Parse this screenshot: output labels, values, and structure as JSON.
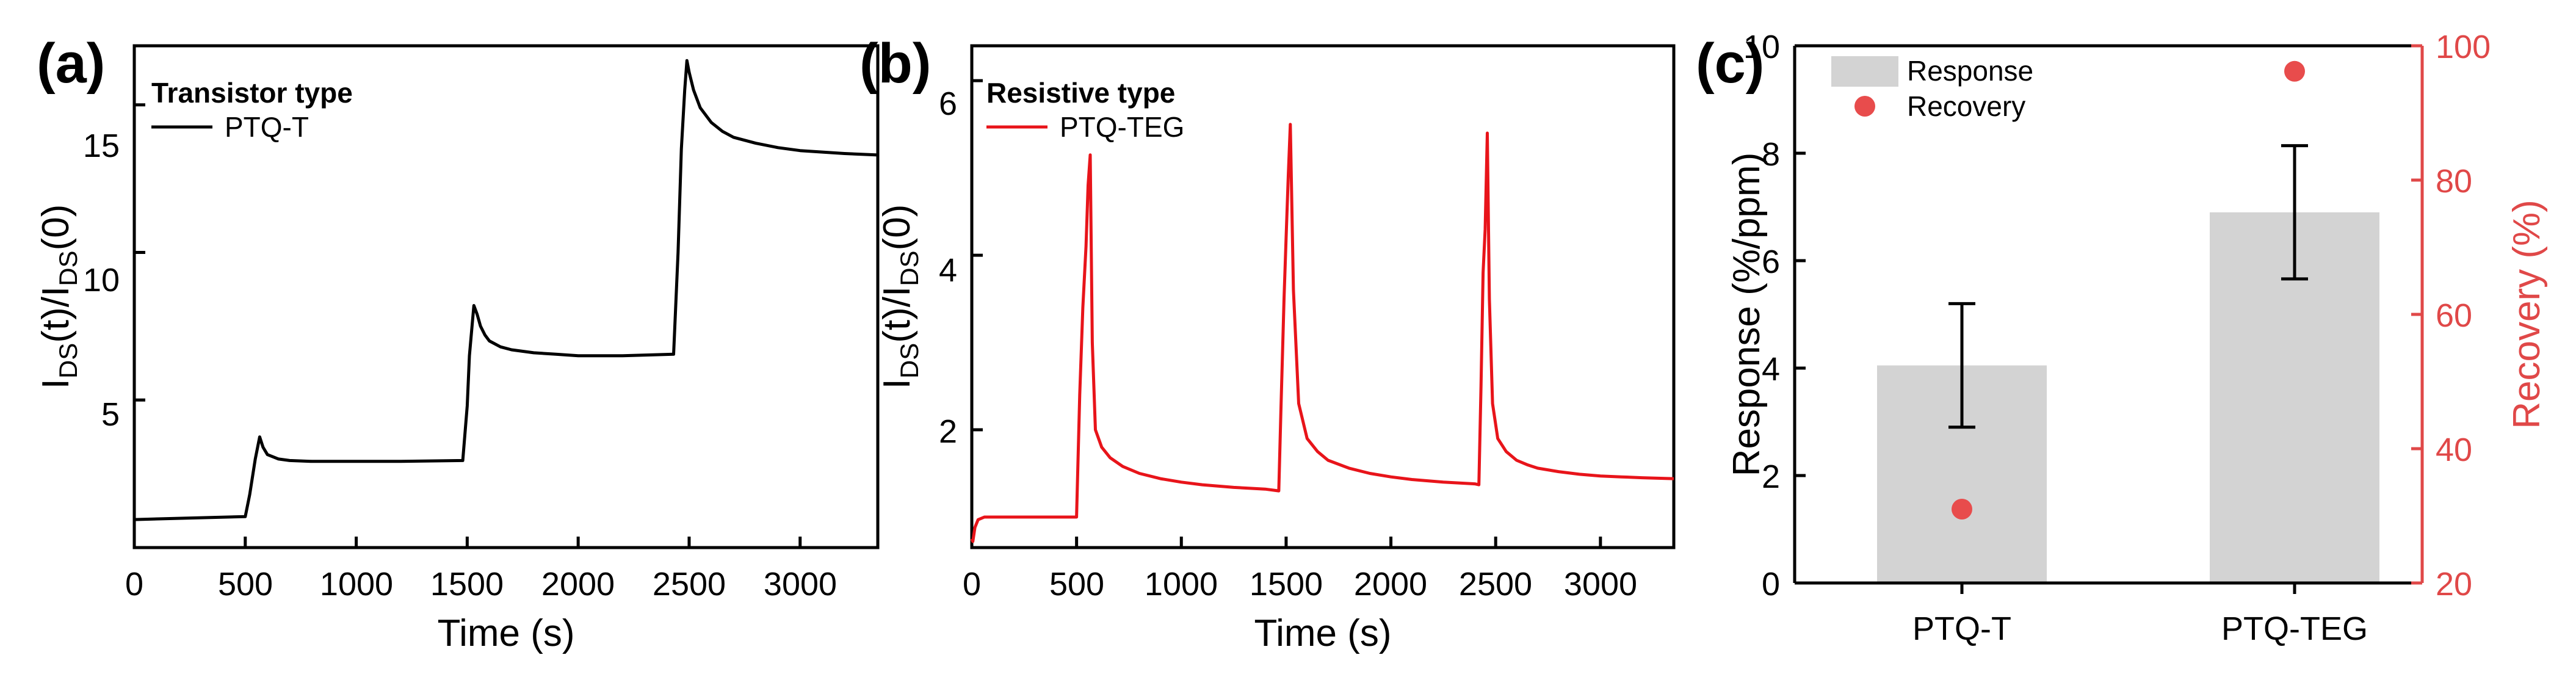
{
  "colors": {
    "black": "#000000",
    "red": "#e8141a",
    "bar_gray": "#d3d3d3",
    "dot_red": "#e84c4c",
    "right_axis_red": "#e04848"
  },
  "chart_data": [
    {
      "panel": "(a)",
      "type": "line",
      "xlabel": "Time (s)",
      "ylabel": {
        "base": "I",
        "sub1": "DS",
        "mid": "(t)/I",
        "sub2": "DS",
        "end": "(0)"
      },
      "xlim": [
        0,
        3350
      ],
      "ylim": [
        0,
        17
      ],
      "xticks": [
        "0",
        "500",
        "1000",
        "1500",
        "2000",
        "2500",
        "3000"
      ],
      "yticks": [
        "5",
        "10",
        "15"
      ],
      "legend_title": "Transistor type",
      "legend_position": "top-left",
      "series": [
        {
          "name": "PTQ-T",
          "color": "#000000",
          "x": [
            0,
            500,
            520,
            545,
            565,
            580,
            600,
            650,
            700,
            800,
            900,
            1000,
            1200,
            1480,
            1500,
            1510,
            1530,
            1545,
            1560,
            1580,
            1600,
            1650,
            1700,
            1800,
            1900,
            2000,
            2200,
            2430,
            2450,
            2465,
            2480,
            2490,
            2500,
            2520,
            2550,
            2600,
            2650,
            2700,
            2800,
            2900,
            3000,
            3100,
            3200,
            3350
          ],
          "y": [
            0.95,
            1.05,
            1.8,
            3.0,
            3.75,
            3.4,
            3.15,
            3.0,
            2.95,
            2.92,
            2.92,
            2.92,
            2.92,
            2.95,
            4.8,
            6.5,
            8.2,
            7.9,
            7.5,
            7.2,
            7.0,
            6.8,
            6.7,
            6.6,
            6.55,
            6.5,
            6.5,
            6.55,
            10.0,
            13.5,
            15.5,
            16.5,
            16.1,
            15.5,
            14.9,
            14.4,
            14.1,
            13.9,
            13.7,
            13.55,
            13.45,
            13.4,
            13.35,
            13.3
          ]
        }
      ]
    },
    {
      "panel": "(b)",
      "type": "line",
      "xlabel": "Time (s)",
      "ylabel": {
        "base": "I",
        "sub1": "DS",
        "mid": "(t)/I",
        "sub2": "DS",
        "end": "(0)"
      },
      "xlim": [
        0,
        3350
      ],
      "ylim": [
        0.65,
        6.4
      ],
      "xticks": [
        "0",
        "500",
        "1000",
        "1500",
        "2000",
        "2500",
        "3000"
      ],
      "yticks": [
        "2",
        "4",
        "6"
      ],
      "legend_title": "Resistive type",
      "legend_position": "top-left",
      "series": [
        {
          "name": "PTQ-TEG",
          "color": "#e8141a",
          "x": [
            0,
            5,
            15,
            30,
            60,
            150,
            300,
            500,
            515,
            530,
            545,
            555,
            565,
            575,
            590,
            620,
            660,
            720,
            800,
            900,
            1000,
            1100,
            1250,
            1400,
            1465,
            1475,
            1490,
            1500,
            1510,
            1520,
            1535,
            1560,
            1600,
            1650,
            1700,
            1800,
            1900,
            2000,
            2100,
            2250,
            2400,
            2420,
            2430,
            2440,
            2450,
            2460,
            2470,
            2485,
            2510,
            2550,
            2600,
            2650,
            2700,
            2800,
            2900,
            3000,
            3100,
            3200,
            3350
          ],
          "y": [
            0.75,
            0.72,
            0.88,
            0.97,
            1.0,
            1.0,
            1.0,
            1.0,
            2.4,
            3.4,
            4.1,
            4.8,
            5.15,
            3.0,
            2.0,
            1.8,
            1.68,
            1.58,
            1.5,
            1.44,
            1.4,
            1.37,
            1.34,
            1.32,
            1.3,
            2.2,
            3.5,
            4.2,
            4.9,
            5.5,
            3.6,
            2.3,
            1.9,
            1.75,
            1.65,
            1.56,
            1.5,
            1.46,
            1.43,
            1.4,
            1.38,
            1.37,
            2.5,
            3.8,
            4.3,
            5.4,
            3.5,
            2.3,
            1.9,
            1.75,
            1.65,
            1.6,
            1.56,
            1.52,
            1.49,
            1.47,
            1.46,
            1.45,
            1.44
          ]
        }
      ]
    },
    {
      "panel": "(c)",
      "type": "bar",
      "categories": [
        "PTQ-T",
        "PTQ-TEG"
      ],
      "xlabel": "",
      "ylabel": "Response (%/ppm)",
      "ylabel_right": "Recovery (%)",
      "ylim": [
        0,
        10
      ],
      "ylim_right": [
        20,
        100
      ],
      "yticks": [
        "0",
        "2",
        "4",
        "6",
        "8",
        "10"
      ],
      "yticks_right": [
        "20",
        "40",
        "60",
        "80",
        "100"
      ],
      "legend_position": "top-left",
      "series": [
        {
          "name": "Response",
          "type": "bar",
          "values": [
            4.05,
            6.9
          ],
          "errors": [
            1.15,
            1.24
          ],
          "color": "#d3d3d3"
        },
        {
          "name": "Recovery",
          "type": "scatter",
          "axis": "right",
          "values": [
            31.0,
            96.2
          ],
          "color": "#e84c4c"
        }
      ]
    }
  ]
}
